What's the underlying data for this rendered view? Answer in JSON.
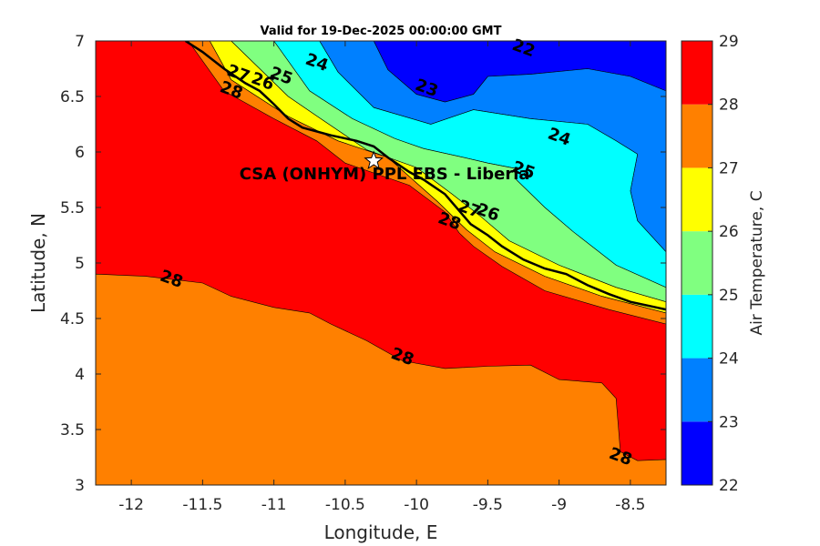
{
  "title": "Valid for 19-Dec-2025 00:00:00 GMT",
  "chart_data": {
    "type": "contour",
    "title": "Valid for 19-Dec-2025 00:00:00 GMT",
    "xlabel": "Longitude, E",
    "ylabel": "Latitude, N",
    "xlim": [
      -12.25,
      -8.25
    ],
    "ylim": [
      3,
      7
    ],
    "xticks": [
      -12,
      -11.5,
      -11,
      -10.5,
      -10,
      -9.5,
      -9,
      -8.5
    ],
    "xtick_labels": [
      "-12",
      "-11.5",
      "-11",
      "-10.5",
      "-10",
      "-9.5",
      "-9",
      "-8.5"
    ],
    "yticks": [
      3,
      3.5,
      4,
      4.5,
      5,
      5.5,
      6,
      6.5,
      7
    ],
    "ytick_labels": [
      "3",
      "3.5",
      "4",
      "4.5",
      "5",
      "5.5",
      "6",
      "6.5",
      "7"
    ],
    "colorbar": {
      "label": "Air Temperature, C",
      "levels": [
        22,
        23,
        24,
        25,
        26,
        27,
        28,
        29
      ],
      "level_labels": [
        "22",
        "23",
        "24",
        "25",
        "26",
        "27",
        "28",
        "29"
      ],
      "colors": [
        "#0000ff",
        "#0080ff",
        "#00ffff",
        "#80ff80",
        "#ffff00",
        "#ff8000",
        "#ff0000",
        "#800000"
      ]
    },
    "regions": [
      {
        "level": "22-23",
        "color": "#0000ff",
        "polygon": [
          [
            -10.3,
            7
          ],
          [
            -8.25,
            7
          ],
          [
            -8.25,
            6.55
          ],
          [
            -8.5,
            6.68
          ],
          [
            -8.8,
            6.75
          ],
          [
            -9.2,
            6.7
          ],
          [
            -9.5,
            6.68
          ],
          [
            -9.6,
            6.52
          ],
          [
            -9.8,
            6.45
          ],
          [
            -10.0,
            6.52
          ],
          [
            -10.2,
            6.74
          ],
          [
            -10.3,
            7
          ]
        ]
      },
      {
        "level": "23-24",
        "color": "#0080ff",
        "polygon": [
          [
            -10.68,
            7
          ],
          [
            -10.3,
            7
          ],
          [
            -10.2,
            6.74
          ],
          [
            -10.0,
            6.52
          ],
          [
            -9.8,
            6.45
          ],
          [
            -9.6,
            6.52
          ],
          [
            -9.5,
            6.68
          ],
          [
            -9.2,
            6.7
          ],
          [
            -8.8,
            6.75
          ],
          [
            -8.5,
            6.68
          ],
          [
            -8.25,
            6.55
          ],
          [
            -8.25,
            5.1
          ],
          [
            -8.45,
            5.38
          ],
          [
            -8.5,
            5.65
          ],
          [
            -8.45,
            5.98
          ],
          [
            -8.6,
            6.1
          ],
          [
            -8.8,
            6.25
          ],
          [
            -9.2,
            6.3
          ],
          [
            -9.6,
            6.38
          ],
          [
            -9.9,
            6.25
          ],
          [
            -10.3,
            6.4
          ],
          [
            -10.55,
            6.72
          ],
          [
            -10.68,
            7
          ]
        ]
      },
      {
        "level": "24-25",
        "color": "#00ffff",
        "polygon": [
          [
            -11.0,
            7
          ],
          [
            -10.68,
            7
          ],
          [
            -10.55,
            6.72
          ],
          [
            -10.3,
            6.4
          ],
          [
            -9.9,
            6.25
          ],
          [
            -9.6,
            6.38
          ],
          [
            -9.2,
            6.3
          ],
          [
            -8.8,
            6.25
          ],
          [
            -8.6,
            6.1
          ],
          [
            -8.45,
            5.98
          ],
          [
            -8.5,
            5.65
          ],
          [
            -8.45,
            5.38
          ],
          [
            -8.25,
            5.1
          ],
          [
            -8.25,
            4.78
          ],
          [
            -8.6,
            4.98
          ],
          [
            -8.9,
            5.28
          ],
          [
            -9.1,
            5.5
          ],
          [
            -9.3,
            5.75
          ],
          [
            -9.3,
            5.85
          ],
          [
            -9.5,
            5.9
          ],
          [
            -9.7,
            5.96
          ],
          [
            -9.95,
            6.03
          ],
          [
            -10.15,
            6.12
          ],
          [
            -10.45,
            6.3
          ],
          [
            -10.75,
            6.55
          ],
          [
            -11.0,
            7
          ]
        ]
      },
      {
        "level": "25-26",
        "color": "#80ff80",
        "polygon": [
          [
            -11.3,
            7
          ],
          [
            -11.0,
            7
          ],
          [
            -10.75,
            6.55
          ],
          [
            -10.45,
            6.3
          ],
          [
            -10.15,
            6.12
          ],
          [
            -9.95,
            6.03
          ],
          [
            -9.7,
            5.96
          ],
          [
            -9.5,
            5.9
          ],
          [
            -9.3,
            5.85
          ],
          [
            -9.3,
            5.75
          ],
          [
            -9.1,
            5.5
          ],
          [
            -8.9,
            5.28
          ],
          [
            -8.6,
            4.98
          ],
          [
            -8.25,
            4.78
          ],
          [
            -8.25,
            4.65
          ],
          [
            -8.6,
            4.78
          ],
          [
            -9.0,
            4.98
          ],
          [
            -9.35,
            5.2
          ],
          [
            -9.55,
            5.42
          ],
          [
            -9.75,
            5.62
          ],
          [
            -10.0,
            5.86
          ],
          [
            -10.35,
            6.02
          ],
          [
            -10.65,
            6.28
          ],
          [
            -10.9,
            6.5
          ],
          [
            -11.3,
            7
          ]
        ]
      },
      {
        "level": "26-27",
        "color": "#ffff00",
        "polygon": [
          [
            -11.45,
            7
          ],
          [
            -11.3,
            7
          ],
          [
            -10.9,
            6.5
          ],
          [
            -10.65,
            6.28
          ],
          [
            -10.35,
            6.02
          ],
          [
            -10.0,
            5.86
          ],
          [
            -9.75,
            5.62
          ],
          [
            -9.55,
            5.42
          ],
          [
            -9.35,
            5.2
          ],
          [
            -9.0,
            4.98
          ],
          [
            -8.6,
            4.78
          ],
          [
            -8.25,
            4.65
          ],
          [
            -8.25,
            4.55
          ],
          [
            -8.7,
            4.7
          ],
          [
            -9.1,
            4.88
          ],
          [
            -9.45,
            5.1
          ],
          [
            -9.65,
            5.3
          ],
          [
            -9.85,
            5.55
          ],
          [
            -10.2,
            5.95
          ],
          [
            -10.55,
            6.1
          ],
          [
            -10.9,
            6.32
          ],
          [
            -11.3,
            6.65
          ],
          [
            -11.45,
            7
          ]
        ]
      },
      {
        "level": "27-28",
        "color": "#ff8000",
        "polygon": [
          [
            -11.6,
            7
          ],
          [
            -11.45,
            7
          ],
          [
            -11.3,
            6.65
          ],
          [
            -10.9,
            6.32
          ],
          [
            -10.55,
            6.1
          ],
          [
            -10.2,
            5.95
          ],
          [
            -9.85,
            5.55
          ],
          [
            -9.65,
            5.3
          ],
          [
            -9.45,
            5.1
          ],
          [
            -9.1,
            4.88
          ],
          [
            -8.7,
            4.7
          ],
          [
            -8.25,
            4.55
          ],
          [
            -8.25,
            4.45
          ],
          [
            -8.65,
            4.58
          ],
          [
            -9.1,
            4.75
          ],
          [
            -9.4,
            4.97
          ],
          [
            -9.6,
            5.15
          ],
          [
            -9.7,
            5.27
          ],
          [
            -9.8,
            5.46
          ],
          [
            -10.05,
            5.7
          ],
          [
            -10.5,
            5.9
          ],
          [
            -10.7,
            6.1
          ],
          [
            -11.0,
            6.3
          ],
          [
            -11.35,
            6.55
          ],
          [
            -11.6,
            7
          ]
        ]
      },
      {
        "level": "28 lower",
        "color": "#ff8000",
        "polygon": [
          [
            -12.25,
            3
          ],
          [
            -12.25,
            4.9
          ],
          [
            -11.9,
            4.88
          ],
          [
            -11.5,
            4.82
          ],
          [
            -11.3,
            4.7
          ],
          [
            -11.0,
            4.6
          ],
          [
            -10.75,
            4.55
          ],
          [
            -10.6,
            4.45
          ],
          [
            -10.35,
            4.3
          ],
          [
            -10.1,
            4.12
          ],
          [
            -9.8,
            4.05
          ],
          [
            -9.5,
            4.07
          ],
          [
            -9.2,
            4.08
          ],
          [
            -9.0,
            3.95
          ],
          [
            -8.7,
            3.92
          ],
          [
            -8.6,
            3.78
          ],
          [
            -8.57,
            3.3
          ],
          [
            -8.45,
            3.22
          ],
          [
            -8.25,
            3.23
          ],
          [
            -8.25,
            3
          ]
        ]
      }
    ],
    "contour_labels": [
      {
        "value": 22,
        "text": "22",
        "lon": -9.25,
        "lat": 6.93
      },
      {
        "value": 23,
        "text": "23",
        "lon": -9.93,
        "lat": 6.57
      },
      {
        "value": 24,
        "text": "24",
        "lon": -10.7,
        "lat": 6.8
      },
      {
        "value": 24,
        "text": "24",
        "lon": -9.0,
        "lat": 6.13
      },
      {
        "value": 25,
        "text": "25",
        "lon": -10.95,
        "lat": 6.68
      },
      {
        "value": 25,
        "text": "25",
        "lon": -9.25,
        "lat": 5.83
      },
      {
        "value": 26,
        "text": "26",
        "lon": -11.08,
        "lat": 6.63
      },
      {
        "value": 26,
        "text": "26",
        "lon": -9.5,
        "lat": 5.45
      },
      {
        "value": 27,
        "text": "27",
        "lon": -11.25,
        "lat": 6.7
      },
      {
        "value": 27,
        "text": "27",
        "lon": -9.63,
        "lat": 5.48
      },
      {
        "value": 28,
        "text": "28",
        "lon": -11.3,
        "lat": 6.55
      },
      {
        "value": 28,
        "text": "28",
        "lon": -9.77,
        "lat": 5.37
      },
      {
        "value": 28,
        "text": "28",
        "lon": -11.72,
        "lat": 4.85
      },
      {
        "value": 28,
        "text": "28",
        "lon": -10.1,
        "lat": 4.15
      },
      {
        "value": 28,
        "text": "28",
        "lon": -8.57,
        "lat": 3.25
      }
    ],
    "coastline": [
      [
        -11.62,
        7.0
      ],
      [
        -11.5,
        6.9
      ],
      [
        -11.35,
        6.75
      ],
      [
        -11.2,
        6.62
      ],
      [
        -11.1,
        6.55
      ],
      [
        -11.0,
        6.43
      ],
      [
        -10.9,
        6.3
      ],
      [
        -10.8,
        6.22
      ],
      [
        -10.6,
        6.15
      ],
      [
        -10.42,
        6.1
      ],
      [
        -10.3,
        6.05
      ],
      [
        -10.2,
        5.95
      ],
      [
        -10.05,
        5.82
      ],
      [
        -9.95,
        5.75
      ],
      [
        -9.8,
        5.62
      ],
      [
        -9.7,
        5.47
      ],
      [
        -9.62,
        5.35
      ],
      [
        -9.5,
        5.25
      ],
      [
        -9.4,
        5.15
      ],
      [
        -9.25,
        5.03
      ],
      [
        -9.1,
        4.95
      ],
      [
        -8.95,
        4.9
      ],
      [
        -8.8,
        4.8
      ],
      [
        -8.65,
        4.72
      ],
      [
        -8.5,
        4.65
      ],
      [
        -8.25,
        4.58
      ]
    ],
    "site": {
      "name": "CSA (ONHYM) PPL EBS  - Liberia",
      "lon": -10.3,
      "lat": 5.92
    }
  }
}
